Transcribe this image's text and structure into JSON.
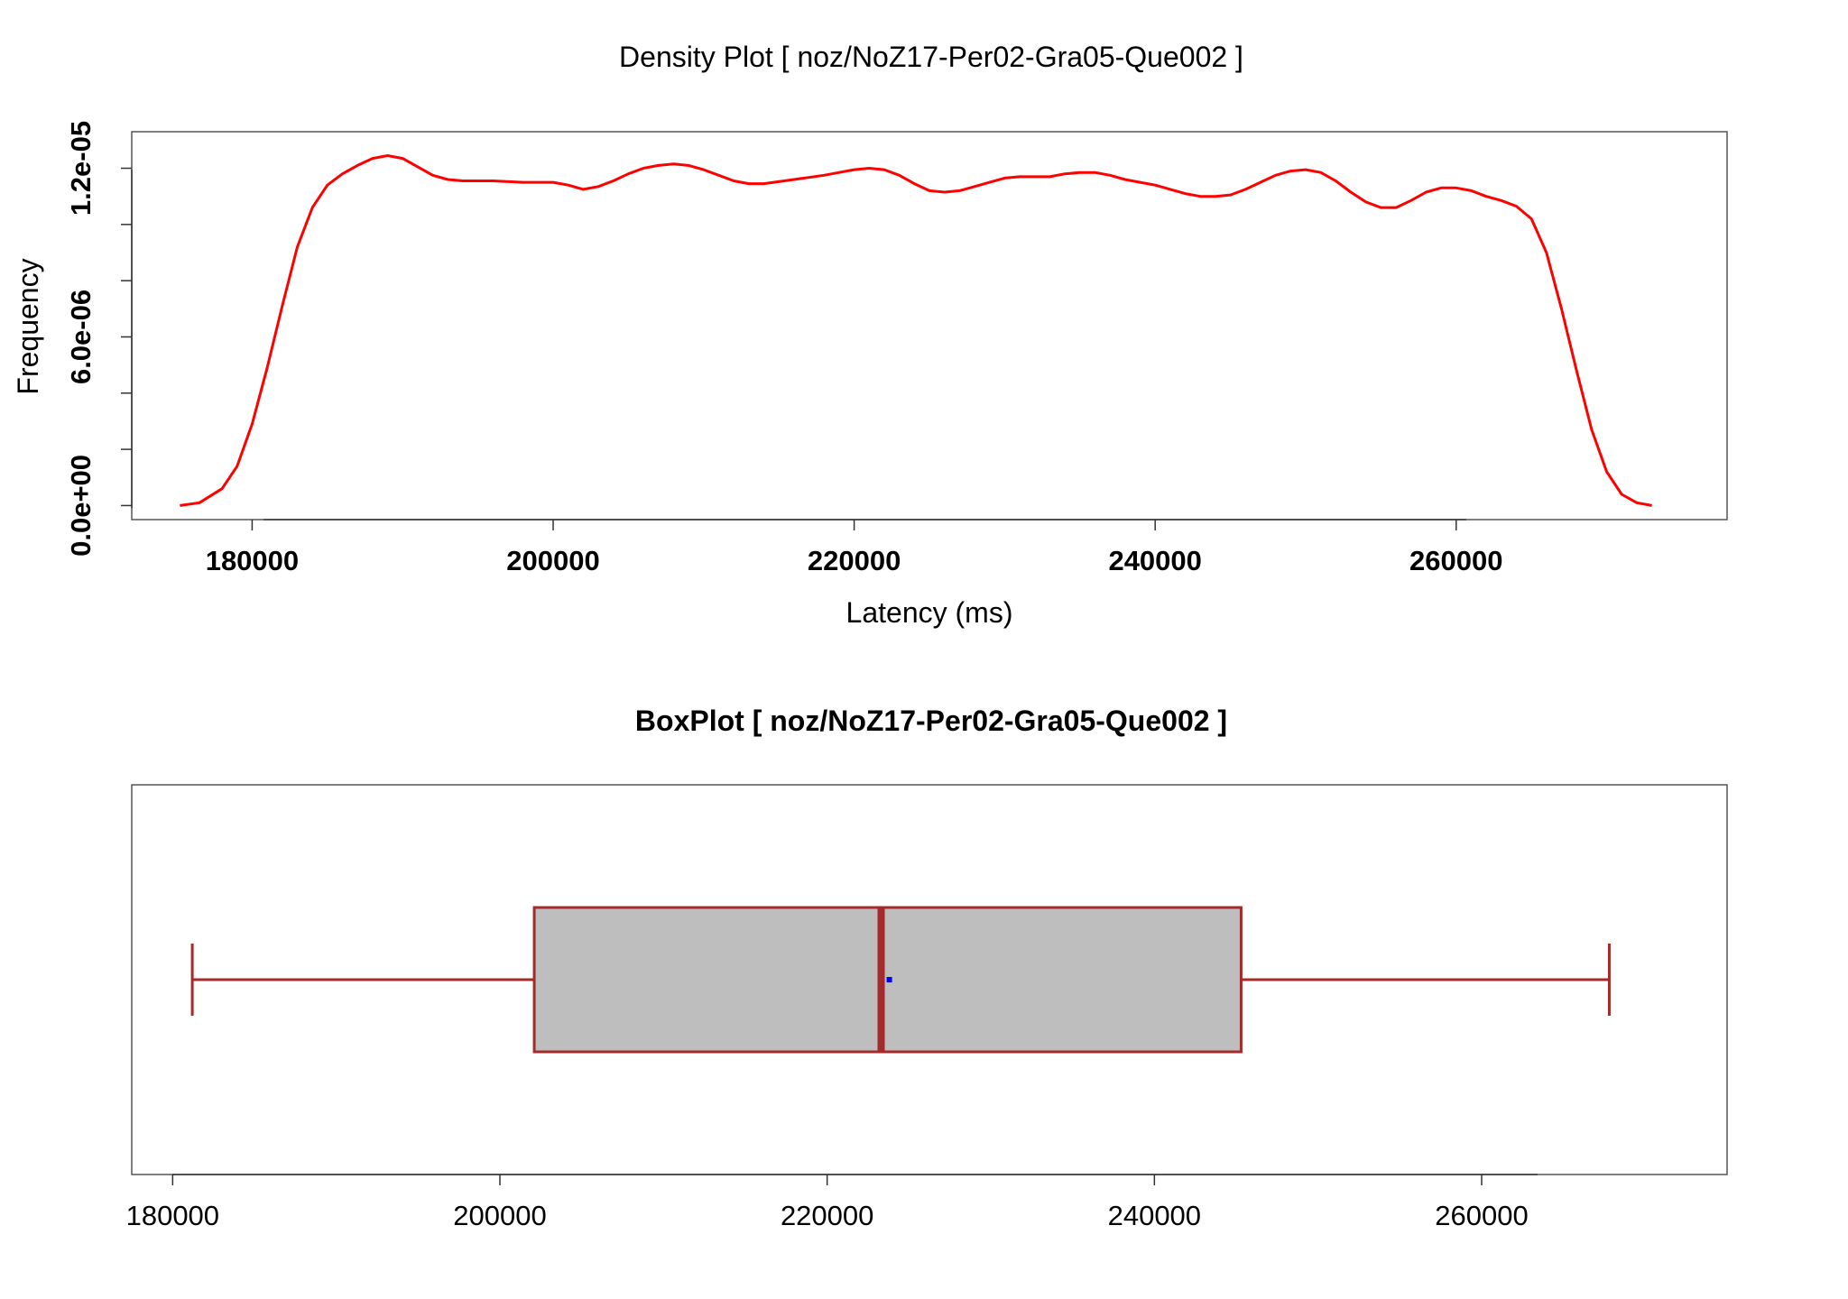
{
  "chart_data": [
    {
      "type": "line",
      "title": "Density Plot [ noz/NoZ17-Per02-Gra05-Que002 ]",
      "xlabel": "Latency (ms)",
      "ylabel": "Frequency",
      "xlim": [
        172000,
        278000
      ],
      "ylim": [
        -5e-07,
        1.33e-05
      ],
      "x_ticks": [
        180000,
        200000,
        220000,
        240000,
        260000
      ],
      "x_tick_labels": [
        "180000",
        "200000",
        "220000",
        "240000",
        "260000"
      ],
      "y_ticks": [
        0,
        2e-06,
        4e-06,
        6e-06,
        8e-06,
        1e-05,
        1.2e-05
      ],
      "y_tick_labels": [
        "0.0e+00",
        "",
        "",
        "6.0e-06",
        "",
        "",
        "1.2e-05"
      ],
      "grid": false,
      "series": [
        {
          "color": "#ff0000",
          "x": [
            175200,
            176500,
            178000,
            179000,
            180000,
            181000,
            182000,
            183000,
            184000,
            185000,
            186000,
            187000,
            188000,
            189000,
            190000,
            191000,
            192000,
            193000,
            194000,
            195000,
            196000,
            198000,
            200000,
            201000,
            202000,
            203000,
            204000,
            205000,
            206000,
            207000,
            208000,
            209000,
            210000,
            211000,
            212000,
            213000,
            214000,
            216000,
            218000,
            219000,
            220000,
            221000,
            222000,
            223000,
            224000,
            225000,
            226000,
            227000,
            228000,
            229000,
            230000,
            231000,
            232000,
            233000,
            234000,
            235000,
            236000,
            237000,
            238000,
            239000,
            240000,
            241000,
            242000,
            243000,
            244000,
            245000,
            246000,
            247000,
            248000,
            249000,
            250000,
            251000,
            252000,
            253000,
            254000,
            255000,
            256000,
            257000,
            258000,
            259000,
            260000,
            261000,
            262000,
            263000,
            264000,
            265000,
            266000,
            267000,
            268000,
            269000,
            270000,
            271000,
            272000,
            273000
          ],
          "y": [
            0.0,
            1e-07,
            6e-07,
            1.4e-06,
            2.9e-06,
            4.9e-06,
            7.1e-06,
            9.2e-06,
            1.06e-05,
            1.14e-05,
            1.18e-05,
            1.21e-05,
            1.235e-05,
            1.245e-05,
            1.235e-05,
            1.205e-05,
            1.175e-05,
            1.16e-05,
            1.155e-05,
            1.155e-05,
            1.155e-05,
            1.15e-05,
            1.15e-05,
            1.14e-05,
            1.125e-05,
            1.135e-05,
            1.155e-05,
            1.18e-05,
            1.2e-05,
            1.21e-05,
            1.215e-05,
            1.21e-05,
            1.195e-05,
            1.175e-05,
            1.155e-05,
            1.145e-05,
            1.145e-05,
            1.16e-05,
            1.175e-05,
            1.185e-05,
            1.195e-05,
            1.2e-05,
            1.195e-05,
            1.175e-05,
            1.145e-05,
            1.12e-05,
            1.115e-05,
            1.12e-05,
            1.135e-05,
            1.15e-05,
            1.165e-05,
            1.17e-05,
            1.17e-05,
            1.17e-05,
            1.18e-05,
            1.185e-05,
            1.185e-05,
            1.175e-05,
            1.16e-05,
            1.15e-05,
            1.14e-05,
            1.125e-05,
            1.11e-05,
            1.1e-05,
            1.1e-05,
            1.105e-05,
            1.125e-05,
            1.15e-05,
            1.175e-05,
            1.19e-05,
            1.195e-05,
            1.185e-05,
            1.155e-05,
            1.115e-05,
            1.08e-05,
            1.06e-05,
            1.06e-05,
            1.085e-05,
            1.115e-05,
            1.13e-05,
            1.13e-05,
            1.12e-05,
            1.1e-05,
            1.085e-05,
            1.065e-05,
            1.02e-05,
            9e-06,
            7e-06,
            4.8e-06,
            2.7e-06,
            1.2e-06,
            4e-07,
            1e-07,
            0.0
          ]
        }
      ]
    },
    {
      "type": "box",
      "title": "BoxPlot [ noz/NoZ17-Per02-Gra05-Que002 ]",
      "orientation": "horizontal",
      "xlim": [
        177500,
        275000
      ],
      "x_ticks": [
        180000,
        200000,
        220000,
        240000,
        260000
      ],
      "x_tick_labels": [
        "180000",
        "200000",
        "220000",
        "240000",
        "260000"
      ],
      "whisker_low": 181200,
      "q1": 202100,
      "median": 223300,
      "q3": 245300,
      "whisker_high": 267800,
      "mean": 223800,
      "box_fill": "#bebebe",
      "line_color": "#a52a2a",
      "mean_color": "#0000ff"
    }
  ]
}
